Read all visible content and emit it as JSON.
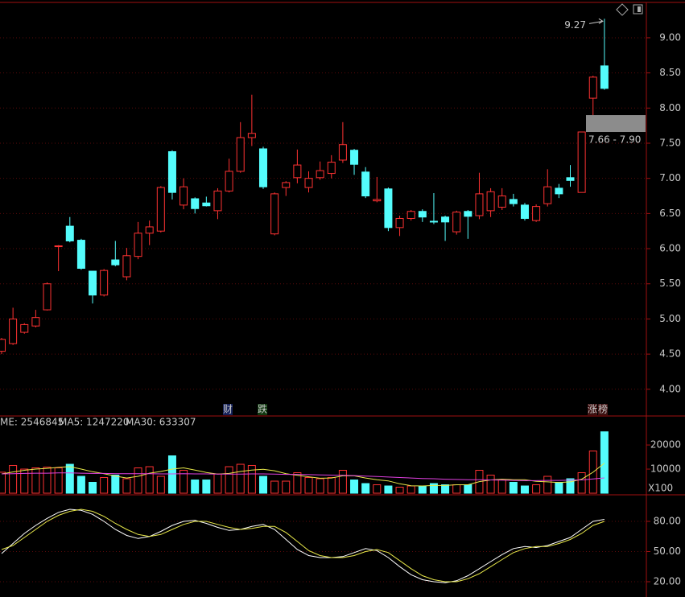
{
  "chart_data": [
    {
      "type": "candlestick",
      "up_color": "#ff3232",
      "down_color": "#54fcfc",
      "open": [
        4.54,
        4.65,
        4.81,
        4.9,
        5.13,
        6.03,
        6.32,
        6.12,
        5.68,
        5.34,
        5.84,
        5.6,
        5.89,
        6.22,
        6.25,
        7.38,
        6.62,
        6.71,
        6.65,
        6.54,
        6.82,
        7.1,
        7.58,
        7.42,
        6.21,
        6.87,
        7.01,
        6.87,
        7.01,
        7.07,
        7.26,
        7.4,
        7.09,
        6.68,
        6.85,
        6.3,
        6.43,
        6.53,
        6.39,
        6.45,
        6.24,
        6.53,
        6.47,
        6.54,
        6.59,
        6.7,
        6.62,
        6.4,
        6.64,
        6.86,
        7.01,
        6.8,
        8.14,
        8.6
      ],
      "high": [
        4.73,
        5.16,
        4.94,
        5.13,
        5.52,
        6.05,
        6.45,
        6.14,
        5.68,
        5.71,
        6.11,
        6.01,
        6.38,
        6.4,
        6.89,
        7.4,
        7.0,
        6.73,
        6.74,
        6.86,
        7.28,
        7.8,
        8.19,
        7.45,
        6.8,
        6.96,
        7.41,
        7.1,
        7.24,
        7.33,
        7.8,
        7.42,
        7.16,
        7.02,
        6.87,
        6.47,
        6.55,
        6.56,
        6.79,
        6.47,
        6.54,
        6.55,
        7.08,
        6.86,
        6.86,
        6.78,
        6.65,
        6.63,
        7.13,
        6.92,
        7.19,
        7.66,
        8.46,
        9.27
      ],
      "low": [
        4.5,
        4.63,
        4.79,
        4.88,
        5.12,
        5.68,
        6.09,
        5.7,
        5.22,
        5.32,
        5.75,
        5.55,
        5.85,
        6.05,
        6.23,
        6.7,
        6.56,
        6.5,
        6.6,
        6.42,
        6.8,
        7.08,
        7.46,
        6.85,
        6.19,
        6.75,
        6.93,
        6.8,
        6.98,
        7.0,
        7.22,
        7.05,
        6.72,
        6.66,
        6.25,
        6.18,
        6.4,
        6.38,
        6.35,
        6.11,
        6.2,
        6.14,
        6.42,
        6.45,
        6.55,
        6.6,
        6.4,
        6.38,
        6.6,
        6.72,
        6.88,
        6.8,
        7.9,
        8.26
      ],
      "close": [
        4.71,
        5.0,
        4.92,
        5.02,
        5.5,
        6.04,
        6.11,
        5.72,
        5.34,
        5.69,
        5.77,
        5.9,
        6.22,
        6.31,
        6.87,
        6.8,
        6.88,
        6.57,
        6.61,
        6.82,
        7.1,
        7.58,
        7.64,
        6.88,
        6.78,
        6.94,
        7.19,
        7.0,
        7.11,
        7.23,
        7.48,
        7.2,
        6.75,
        6.7,
        6.3,
        6.43,
        6.53,
        6.45,
        6.38,
        6.38,
        6.52,
        6.46,
        6.78,
        6.81,
        6.75,
        6.64,
        6.43,
        6.6,
        6.88,
        6.78,
        6.97,
        7.66,
        8.44,
        8.28
      ],
      "ylim": [
        3.62,
        9.48
      ],
      "yticks": [
        {
          "value": 4,
          "label": "4.00"
        },
        {
          "value": 4.5,
          "label": "4.50"
        },
        {
          "value": 5,
          "label": "5.00"
        },
        {
          "value": 5.5,
          "label": "5.50"
        },
        {
          "value": 6,
          "label": "6.00"
        },
        {
          "value": 6.5,
          "label": "6.50"
        },
        {
          "value": 7,
          "label": "7.00"
        },
        {
          "value": 7.5,
          "label": "7.50"
        },
        {
          "value": 8,
          "label": "8.00"
        },
        {
          "value": 8.5,
          "label": "8.50"
        },
        {
          "value": 9,
          "label": "9.00"
        }
      ],
      "grid": true,
      "max_label": "9.27",
      "gap": [
        7.66,
        7.9
      ],
      "gap_label": "7.66 - 7.90",
      "markers": [
        "财",
        "跌",
        "涨",
        "榜"
      ]
    },
    {
      "type": "bar",
      "header": [
        "ME: 2546845",
        "MA5: 1247220",
        "MA30: 633307"
      ],
      "unit": "X100",
      "values": [
        8700,
        11500,
        10000,
        10500,
        10800,
        10500,
        12000,
        7000,
        4500,
        6500,
        7500,
        6000,
        10500,
        11000,
        7000,
        15500,
        9500,
        5500,
        5500,
        8000,
        11000,
        12000,
        11500,
        7000,
        5000,
        5000,
        8500,
        6500,
        6000,
        6500,
        9500,
        5500,
        4000,
        3500,
        3000,
        2500,
        3000,
        3000,
        4000,
        3500,
        3500,
        3500,
        9500,
        7500,
        5500,
        4500,
        3000,
        3500,
        7000,
        4500,
        6000,
        8500,
        17500,
        25468
      ],
      "series": [
        {
          "name": "MA5",
          "color": "#e8e84a",
          "values": [
            8000,
            8800,
            9500,
            10000,
            10300,
            10700,
            11000,
            10000,
            8900,
            8100,
            7100,
            6300,
            7000,
            8300,
            9000,
            10000,
            10500,
            9600,
            8600,
            7900,
            8200,
            9000,
            9600,
            9900,
            9300,
            8100,
            7400,
            6800,
            6200,
            6300,
            7200,
            7200,
            6300,
            5600,
            5100,
            3900,
            3100,
            3000,
            3200,
            3200,
            3500,
            3500,
            4800,
            5500,
            5800,
            5600,
            5600,
            4900,
            4700,
            4400,
            4700,
            5800,
            8700,
            12472
          ]
        },
        {
          "name": "MA30",
          "color": "#e040e0",
          "values": [
            8000,
            8100,
            8200,
            8300,
            8300,
            8400,
            8400,
            8300,
            8200,
            8200,
            8100,
            8100,
            8100,
            8100,
            8000,
            8000,
            8100,
            8000,
            8000,
            7900,
            7900,
            7900,
            8000,
            8000,
            7900,
            7800,
            7800,
            7700,
            7600,
            7500,
            7400,
            7300,
            7100,
            6900,
            6700,
            6500,
            6300,
            6100,
            6000,
            5800,
            5700,
            5600,
            5600,
            5500,
            5400,
            5300,
            5200,
            5200,
            5300,
            5300,
            5400,
            5500,
            5900,
            6333
          ]
        }
      ],
      "ylim": [
        0,
        31700
      ],
      "yticks": [
        10000,
        20000
      ]
    },
    {
      "type": "line",
      "series": [
        {
          "color": "#ffffff",
          "values": [
            48,
            58,
            68,
            76,
            83,
            89,
            92,
            91,
            87,
            80,
            72,
            66,
            63,
            65,
            70,
            76,
            80,
            81,
            78,
            74,
            71,
            72,
            75,
            77,
            72,
            62,
            52,
            46,
            44,
            44,
            45,
            49,
            53,
            51,
            44,
            35,
            27,
            22,
            20,
            19,
            21,
            26,
            33,
            40,
            47,
            53,
            55,
            54,
            56,
            60,
            64,
            72,
            80,
            82
          ]
        },
        {
          "color": "#e8e84a",
          "values": [
            52,
            56,
            64,
            72,
            80,
            86,
            90,
            92,
            90,
            85,
            78,
            72,
            67,
            65,
            67,
            72,
            77,
            80,
            80,
            77,
            74,
            72,
            73,
            75,
            75,
            69,
            60,
            51,
            46,
            44,
            44,
            46,
            50,
            52,
            49,
            41,
            33,
            26,
            22,
            20,
            20,
            23,
            28,
            35,
            42,
            49,
            53,
            55,
            55,
            58,
            62,
            68,
            76,
            80
          ]
        }
      ],
      "ylim": [
        4.8,
        104
      ],
      "yticks": [
        {
          "value": 20,
          "label": "20.00"
        },
        {
          "value": 50,
          "label": "50.00"
        },
        {
          "value": 80,
          "label": "80.00"
        }
      ]
    }
  ]
}
